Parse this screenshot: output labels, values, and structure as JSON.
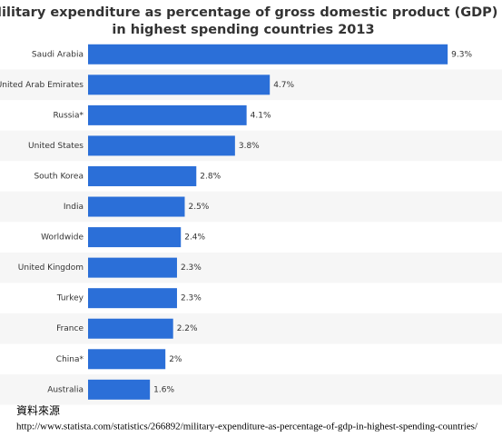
{
  "chart_data": {
    "type": "bar",
    "orientation": "horizontal",
    "title": "Military expenditure as percentage of gross domestic product (GDP)",
    "subtitle": "in highest spending countries 2013",
    "categories": [
      "Saudi Arabia",
      "United Arab Emirates",
      "Russia*",
      "United States",
      "South Korea",
      "India",
      "Worldwide",
      "United Kingdom",
      "Turkey",
      "France",
      "China*",
      "Australia"
    ],
    "values": [
      9.3,
      4.7,
      4.1,
      3.8,
      2.8,
      2.5,
      2.4,
      2.3,
      2.3,
      2.2,
      2,
      1.6
    ],
    "value_labels": [
      "9.3%",
      "4.7%",
      "4.1%",
      "3.8%",
      "2.8%",
      "2.5%",
      "2.4%",
      "2.3%",
      "2.3%",
      "2.2%",
      "2%",
      "1.6%"
    ],
    "color": "#2b6fd8",
    "xlim": [
      0,
      10.4
    ]
  },
  "source_label": "資料來源",
  "source_url": "http://www.statista.com/statistics/266892/military-expenditure-as-percentage-of-gdp-in-highest-spending-countries/"
}
